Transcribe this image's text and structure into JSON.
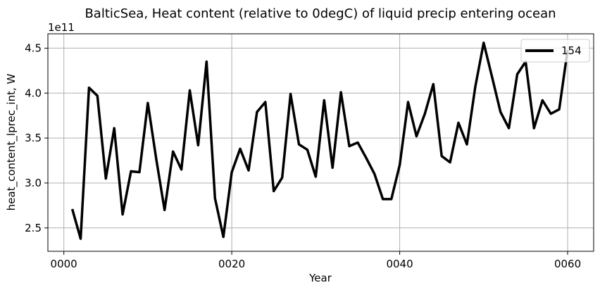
{
  "chart_data": {
    "type": "line",
    "title": "BalticSea, Heat content (relative to 0degC) of liquid precip entering ocean",
    "xlabel": "Year",
    "ylabel": "heat_content_lprec_int, W",
    "y_offset_label": "1e11",
    "xlim": [
      -1.9,
      63.1
    ],
    "ylim": [
      2.24,
      4.66
    ],
    "x_ticks": [
      0,
      20,
      40,
      60
    ],
    "x_tick_labels": [
      "0000",
      "0020",
      "0040",
      "0060"
    ],
    "y_ticks": [
      2.5,
      3.0,
      3.5,
      4.0,
      4.5
    ],
    "y_tick_labels": [
      "2.5",
      "3.0",
      "3.5",
      "4.0",
      "4.5"
    ],
    "grid": true,
    "legend_position": "top-right",
    "series": [
      {
        "name": "154",
        "color": "#000000",
        "x": [
          1,
          2,
          3,
          4,
          5,
          6,
          7,
          8,
          9,
          10,
          11,
          12,
          13,
          14,
          15,
          16,
          17,
          18,
          19,
          20,
          21,
          22,
          23,
          24,
          25,
          26,
          27,
          28,
          29,
          30,
          31,
          32,
          33,
          34,
          35,
          36,
          37,
          38,
          39,
          40,
          41,
          42,
          43,
          44,
          45,
          46,
          47,
          48,
          49,
          50,
          51,
          52,
          53,
          54,
          55,
          56,
          57,
          58,
          59,
          60
        ],
        "values": [
          2.71,
          2.38,
          4.06,
          3.97,
          3.05,
          3.61,
          2.65,
          3.13,
          3.12,
          3.89,
          3.27,
          2.7,
          3.35,
          3.15,
          4.03,
          3.42,
          4.35,
          2.83,
          2.4,
          3.12,
          3.38,
          3.14,
          3.79,
          3.9,
          2.91,
          3.06,
          3.99,
          3.43,
          3.37,
          3.07,
          3.92,
          3.17,
          4.01,
          3.41,
          3.45,
          3.28,
          3.1,
          2.82,
          2.82,
          3.2,
          3.9,
          3.52,
          3.77,
          4.1,
          3.3,
          3.23,
          3.67,
          3.43,
          4.07,
          4.56,
          4.18,
          3.79,
          3.61,
          4.21,
          4.35,
          3.61,
          3.92,
          3.77,
          3.82,
          4.48
        ]
      }
    ]
  }
}
